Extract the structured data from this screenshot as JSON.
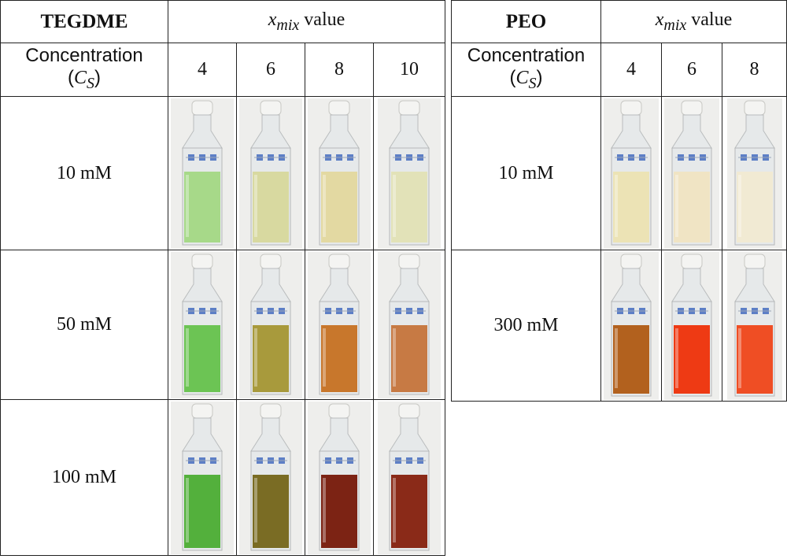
{
  "tegdme": {
    "title": "TEGDME",
    "xmix_symbol": "x",
    "xmix_sub": "mix",
    "xmix_suffix": " value",
    "conc_label": "Concentration",
    "conc_symbol": "C",
    "conc_sub": "S",
    "columns": [
      "4",
      "6",
      "8",
      "10"
    ],
    "rows": [
      {
        "label": "10 mM",
        "liquids": [
          "#a7d989",
          "#d8d9a0",
          "#e3d9a2",
          "#e2e2b8"
        ]
      },
      {
        "label": "50 mM",
        "liquids": [
          "#6cc454",
          "#a89a3c",
          "#c8772c",
          "#c77a44"
        ]
      },
      {
        "label": "100 mM",
        "liquids": [
          "#53b03c",
          "#7a6c24",
          "#7c2314",
          "#8a2a18"
        ]
      }
    ]
  },
  "peo": {
    "title": "PEO",
    "xmix_symbol": "x",
    "xmix_sub": "mix",
    "xmix_suffix": " value",
    "conc_label": "Concentration",
    "conc_symbol": "C",
    "conc_sub": "S",
    "columns": [
      "4",
      "6",
      "8"
    ],
    "rows": [
      {
        "label": "10 mM",
        "liquids": [
          "#ece3b5",
          "#f0e4c4",
          "#f1ead3"
        ]
      },
      {
        "label": "300 mM",
        "liquids": [
          "#b2611e",
          "#ee3a14",
          "#ef4e24"
        ]
      }
    ]
  },
  "colors": {
    "border": "#222222",
    "cuvette_cap": "#f4f4f2",
    "cuvette_glass": "#e6e9ea",
    "label_blue": "#5d7fc6"
  }
}
